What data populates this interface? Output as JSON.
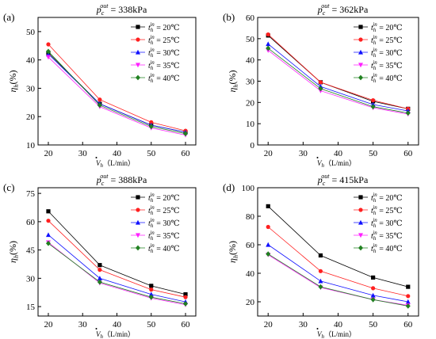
{
  "chart_data": [
    {
      "type": "line",
      "panel_label": "(a)",
      "title_base": "p",
      "title_sub": "c",
      "title_sup": "out",
      "title_rest": " = 338kPa",
      "ylabel_base": "η",
      "ylabel_sub": "h",
      "ylabel_rest": "(%)",
      "xlabel_base": "V",
      "xlabel_sub": "h",
      "xlabel_rest": "（L/min）",
      "x": [
        20,
        35,
        50,
        60
      ],
      "xticks": [
        20,
        30,
        40,
        50,
        60
      ],
      "xlim": [
        17,
        63
      ],
      "ylim": [
        10,
        55
      ],
      "yticks": [
        10,
        20,
        30,
        40,
        50
      ],
      "legend_position": "top-right",
      "series": [
        {
          "legend_sub": "h",
          "legend_sup": "in",
          "legend_value": " = 20℃",
          "color": "#000000",
          "marker": "square",
          "values": [
            42.5,
            24.5,
            17.0,
            14.5
          ]
        },
        {
          "legend_sub": "h",
          "legend_sup": "in",
          "legend_value": " = 25℃",
          "color": "#ff2020",
          "marker": "circle",
          "values": [
            45.5,
            26.0,
            18.0,
            15.0
          ]
        },
        {
          "legend_sub": "h",
          "legend_sup": "in",
          "legend_value": " = 30℃",
          "color": "#1010ff",
          "marker": "triangle-up",
          "values": [
            42.0,
            24.5,
            17.0,
            14.5
          ]
        },
        {
          "legend_sub": "h",
          "legend_sup": "in",
          "legend_value": " = 35℃",
          "color": "#ff20ff",
          "marker": "triangle-down",
          "values": [
            41.0,
            23.5,
            16.0,
            13.5
          ]
        },
        {
          "legend_sub": "h",
          "legend_sup": "in",
          "legend_value": " = 40℃",
          "color": "#208020",
          "marker": "diamond",
          "values": [
            43.0,
            24.0,
            16.5,
            14.0
          ]
        }
      ]
    },
    {
      "type": "line",
      "panel_label": "(b)",
      "title_base": "p",
      "title_sub": "c",
      "title_sup": "out",
      "title_rest": " = 362kPa",
      "ylabel_base": "η",
      "ylabel_sub": "h",
      "ylabel_rest": "(%)",
      "xlabel_base": "V",
      "xlabel_sub": "h",
      "xlabel_rest": "（L/min）",
      "x": [
        20,
        35,
        50,
        60
      ],
      "xticks": [
        20,
        30,
        40,
        50,
        60
      ],
      "xlim": [
        17,
        63
      ],
      "ylim": [
        0,
        60
      ],
      "yticks": [
        0,
        10,
        20,
        30,
        40,
        50,
        60
      ],
      "legend_position": "top-right",
      "series": [
        {
          "legend_sub": "h",
          "legend_sup": "in",
          "legend_value": " = 20℃",
          "color": "#000000",
          "marker": "square",
          "values": [
            51.5,
            29.5,
            20.5,
            17.0
          ]
        },
        {
          "legend_sub": "h",
          "legend_sup": "in",
          "legend_value": " = 25℃",
          "color": "#ff2020",
          "marker": "circle",
          "values": [
            52.0,
            29.5,
            21.0,
            17.0
          ]
        },
        {
          "legend_sub": "h",
          "legend_sup": "in",
          "legend_value": " = 30℃",
          "color": "#1010ff",
          "marker": "triangle-up",
          "values": [
            47.5,
            27.5,
            19.0,
            16.0
          ]
        },
        {
          "legend_sub": "h",
          "legend_sup": "in",
          "legend_value": " = 35℃",
          "color": "#ff20ff",
          "marker": "triangle-down",
          "values": [
            44.5,
            25.5,
            17.5,
            14.5
          ]
        },
        {
          "legend_sub": "h",
          "legend_sup": "in",
          "legend_value": " = 40℃",
          "color": "#208020",
          "marker": "diamond",
          "values": [
            45.5,
            26.5,
            18.0,
            15.0
          ]
        }
      ]
    },
    {
      "type": "line",
      "panel_label": "(c)",
      "title_base": "p",
      "title_sub": "c",
      "title_sup": "out",
      "title_rest": " = 388kPa",
      "ylabel_base": "η",
      "ylabel_sub": "h",
      "ylabel_rest": "(%)",
      "xlabel_base": "V",
      "xlabel_sub": "h",
      "xlabel_rest": "（L/min）",
      "x": [
        20,
        35,
        50,
        60
      ],
      "xticks": [
        20,
        30,
        40,
        50,
        60
      ],
      "xlim": [
        17,
        63
      ],
      "ylim": [
        10,
        78
      ],
      "yticks": [
        15,
        30,
        45,
        60,
        75
      ],
      "legend_position": "top-right",
      "series": [
        {
          "legend_sub": "h",
          "legend_sup": "in",
          "legend_value": " = 20℃",
          "color": "#000000",
          "marker": "square",
          "values": [
            65.5,
            37.0,
            26.0,
            21.5
          ]
        },
        {
          "legend_sub": "h",
          "legend_sup": "in",
          "legend_value": " = 25℃",
          "color": "#ff2020",
          "marker": "circle",
          "values": [
            60.5,
            34.5,
            24.0,
            20.0
          ]
        },
        {
          "legend_sub": "h",
          "legend_sup": "in",
          "legend_value": " = 30℃",
          "color": "#1010ff",
          "marker": "triangle-up",
          "values": [
            53.0,
            30.0,
            21.5,
            17.5
          ]
        },
        {
          "legend_sub": "h",
          "legend_sup": "in",
          "legend_value": " = 35℃",
          "color": "#ff20ff",
          "marker": "triangle-down",
          "values": [
            49.0,
            27.5,
            19.5,
            16.0
          ]
        },
        {
          "legend_sub": "h",
          "legend_sup": "in",
          "legend_value": " = 40℃",
          "color": "#208020",
          "marker": "diamond",
          "values": [
            48.5,
            28.0,
            20.0,
            16.5
          ]
        }
      ]
    },
    {
      "type": "line",
      "panel_label": "(d)",
      "title_base": "p",
      "title_sub": "c",
      "title_sup": "out",
      "title_rest": " = 415kPa",
      "ylabel_base": "η",
      "ylabel_sub": "h",
      "ylabel_rest": "(%)",
      "xlabel_base": "V",
      "xlabel_sub": "h",
      "xlabel_rest": "（L/min）",
      "x": [
        20,
        35,
        50,
        60
      ],
      "xticks": [
        20,
        30,
        40,
        50,
        60
      ],
      "xlim": [
        17,
        63
      ],
      "ylim": [
        10,
        100
      ],
      "yticks": [
        20,
        40,
        60,
        80,
        100
      ],
      "legend_position": "top-right",
      "series": [
        {
          "legend_sub": "h",
          "legend_sup": "in",
          "legend_value": " = 20℃",
          "color": "#000000",
          "marker": "square",
          "values": [
            87.0,
            52.5,
            37.0,
            30.5
          ]
        },
        {
          "legend_sub": "h",
          "legend_sup": "in",
          "legend_value": " = 25℃",
          "color": "#ff2020",
          "marker": "circle",
          "values": [
            72.5,
            41.5,
            29.5,
            24.0
          ]
        },
        {
          "legend_sub": "h",
          "legend_sup": "in",
          "legend_value": " = 30℃",
          "color": "#1010ff",
          "marker": "triangle-up",
          "values": [
            60.0,
            34.5,
            24.5,
            20.0
          ]
        },
        {
          "legend_sub": "h",
          "legend_sup": "in",
          "legend_value": " = 35℃",
          "color": "#ff20ff",
          "marker": "triangle-down",
          "values": [
            53.0,
            30.0,
            21.5,
            17.5
          ]
        },
        {
          "legend_sub": "h",
          "legend_sup": "in",
          "legend_value": " = 40℃",
          "color": "#208020",
          "marker": "diamond",
          "values": [
            53.5,
            30.5,
            21.5,
            17.0
          ]
        }
      ]
    }
  ]
}
